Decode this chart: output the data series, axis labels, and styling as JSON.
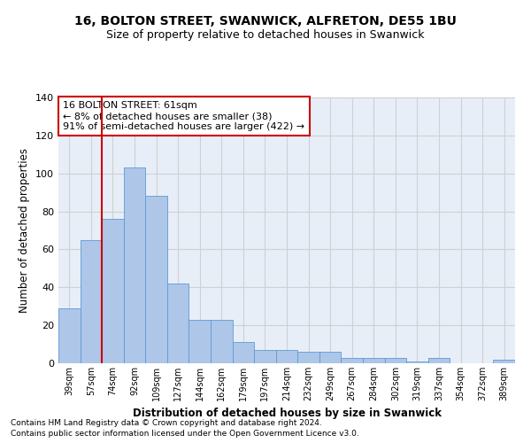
{
  "title1": "16, BOLTON STREET, SWANWICK, ALFRETON, DE55 1BU",
  "title2": "Size of property relative to detached houses in Swanwick",
  "xlabel": "Distribution of detached houses by size in Swanwick",
  "ylabel": "Number of detached properties",
  "categories": [
    "39sqm",
    "57sqm",
    "74sqm",
    "92sqm",
    "109sqm",
    "127sqm",
    "144sqm",
    "162sqm",
    "179sqm",
    "197sqm",
    "214sqm",
    "232sqm",
    "249sqm",
    "267sqm",
    "284sqm",
    "302sqm",
    "319sqm",
    "337sqm",
    "354sqm",
    "372sqm",
    "389sqm"
  ],
  "values": [
    29,
    65,
    76,
    103,
    88,
    42,
    23,
    23,
    11,
    7,
    7,
    6,
    6,
    3,
    3,
    3,
    1,
    3,
    0,
    0,
    2
  ],
  "bar_color": "#aec6e8",
  "bar_edge_color": "#5b9bd5",
  "grid_color": "#d0d0d0",
  "bg_color": "#e8eef8",
  "vline_x": 1.5,
  "vline_color": "#cc0000",
  "annotation_text": "16 BOLTON STREET: 61sqm\n← 8% of detached houses are smaller (38)\n91% of semi-detached houses are larger (422) →",
  "annotation_box_color": "#cc0000",
  "footer1": "Contains HM Land Registry data © Crown copyright and database right 2024.",
  "footer2": "Contains public sector information licensed under the Open Government Licence v3.0.",
  "ylim": [
    0,
    140
  ]
}
